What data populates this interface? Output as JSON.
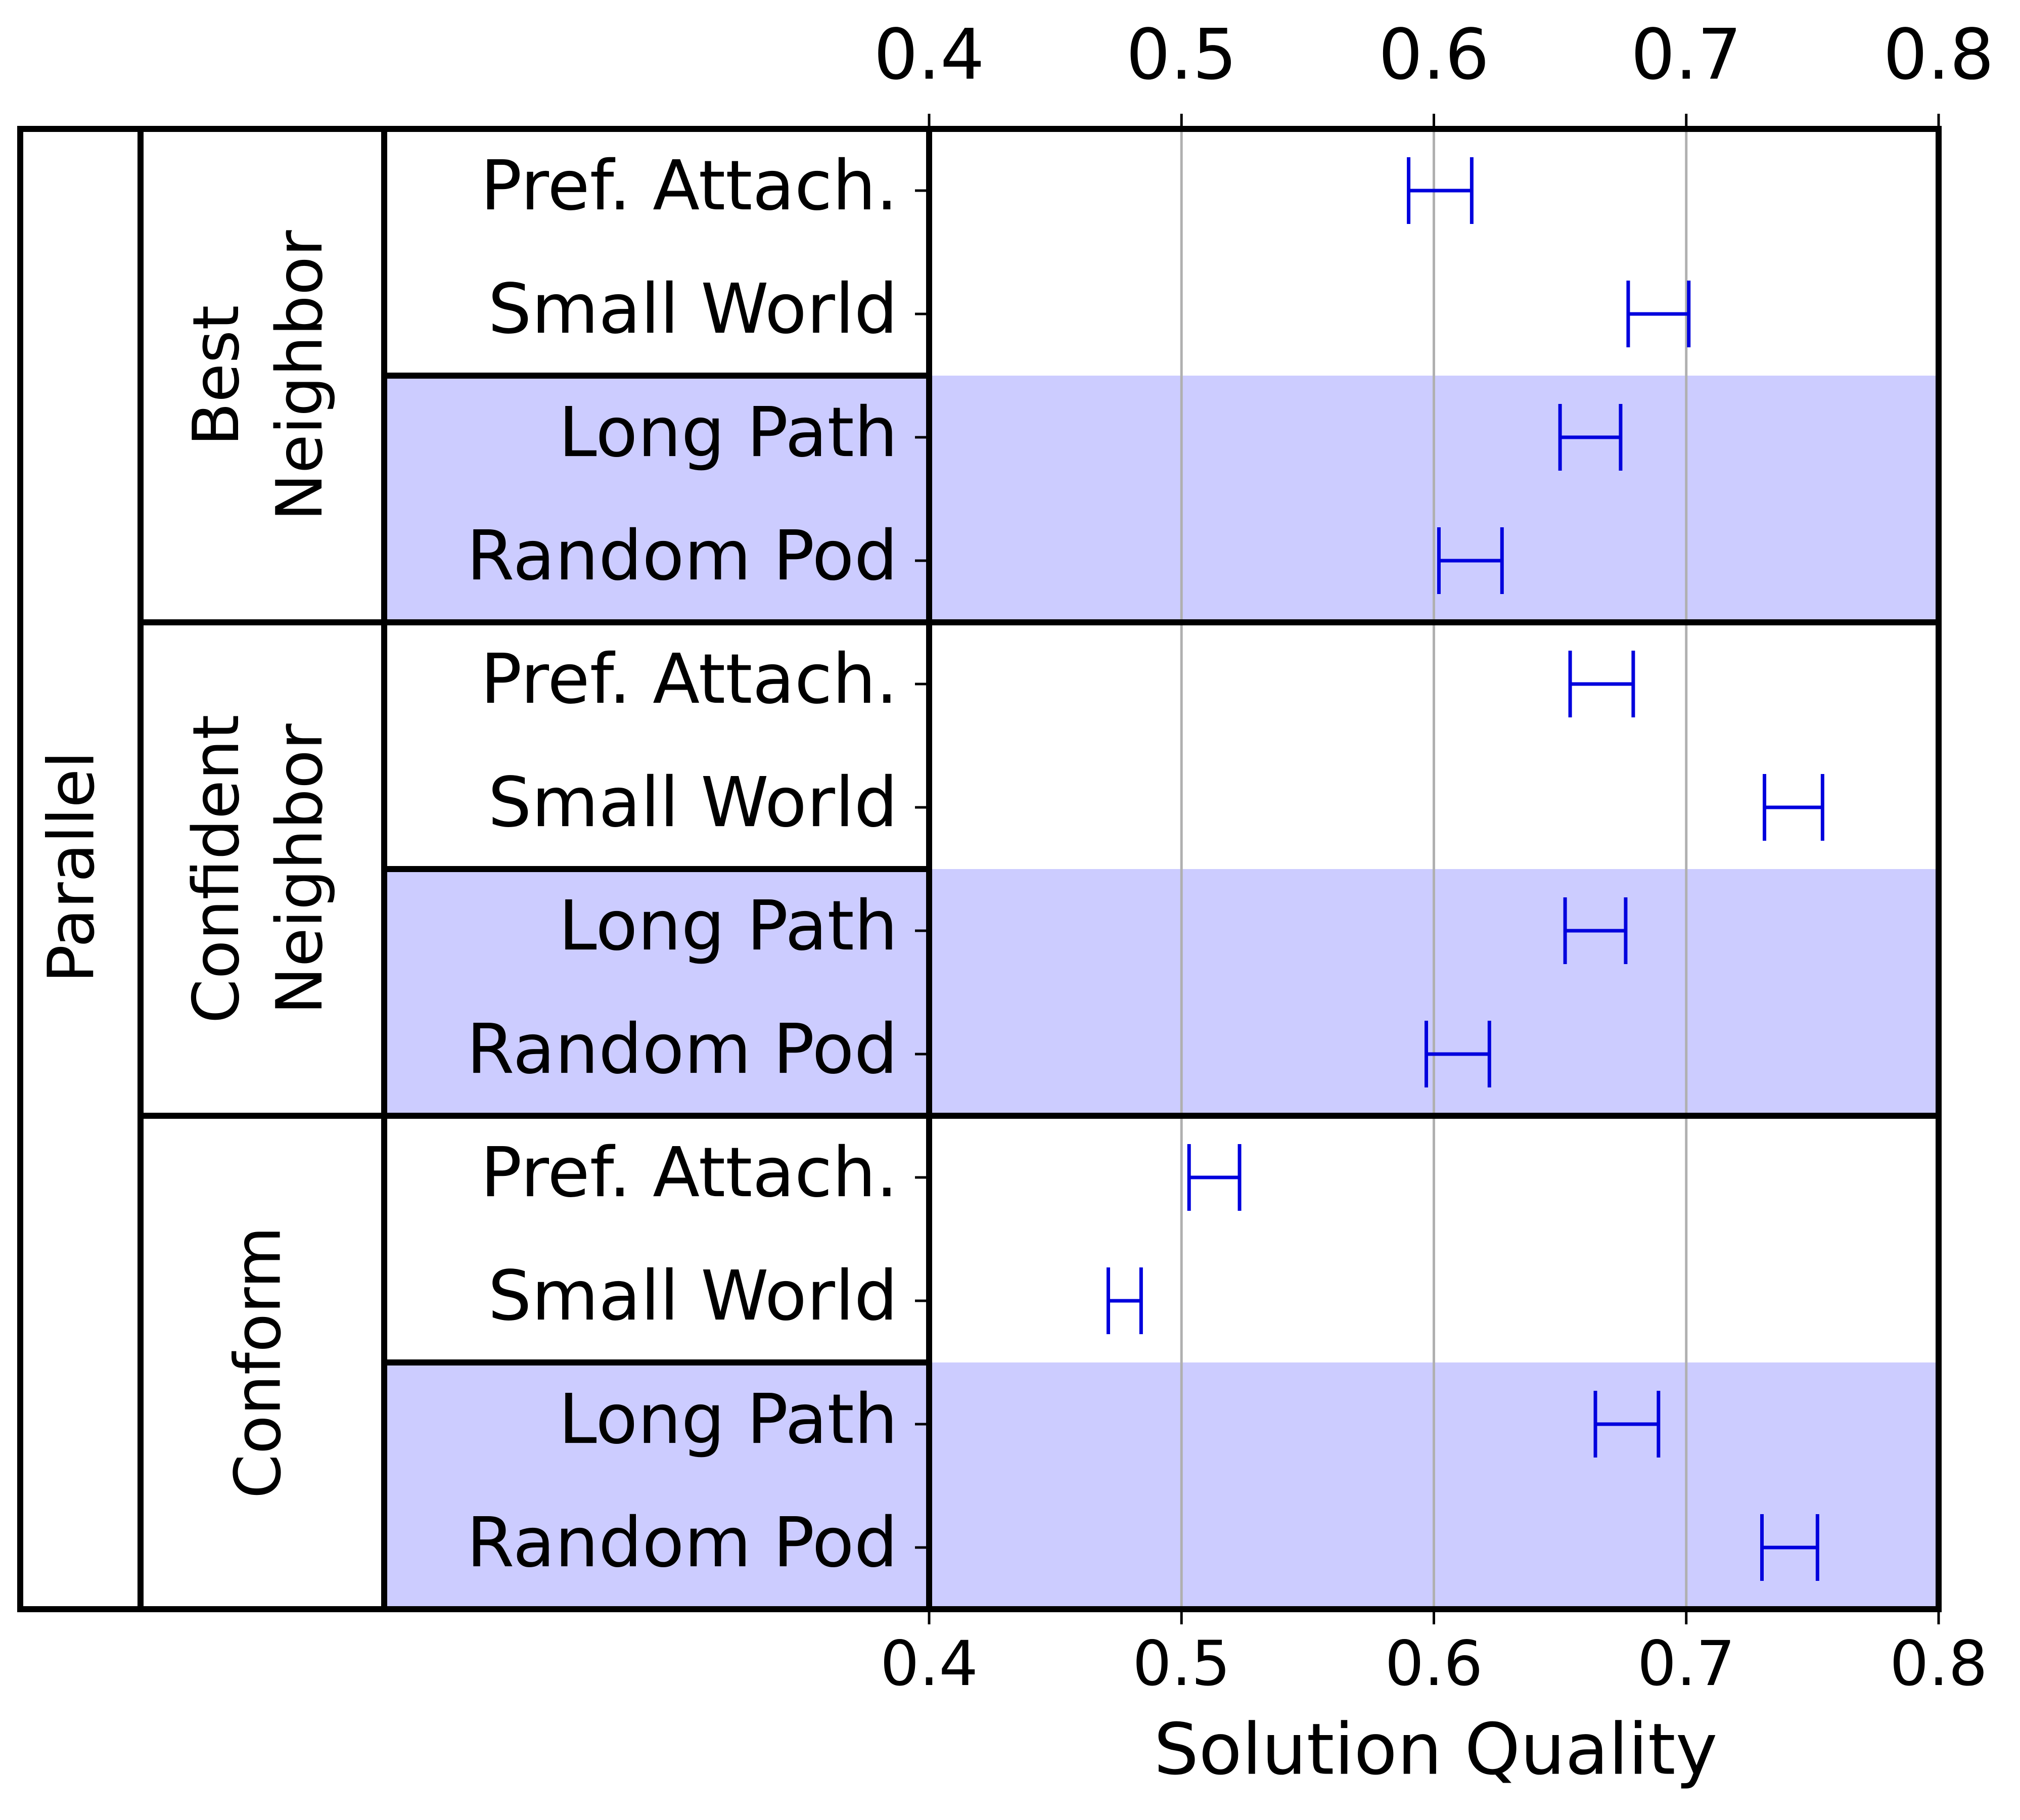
{
  "chart_data": {
    "type": "errorbar",
    "xlabel": "Solution Quality",
    "xlim": [
      0.4,
      0.8
    ],
    "xticks": [
      "0.4",
      "0.5",
      "0.6",
      "0.7",
      "0.8"
    ],
    "grid": "vertical",
    "outer_group": "Parallel",
    "colors": {
      "errorbar": "#0000dd",
      "band": "#ccccff",
      "grid": "#b0b0b0"
    },
    "groups": [
      {
        "label_lines": [
          "Best",
          "Neighbor"
        ],
        "rows": [
          {
            "label": "Pref. Attach.",
            "low": 0.59,
            "high": 0.615,
            "shaded": false
          },
          {
            "label": "Small World",
            "low": 0.677,
            "high": 0.701,
            "shaded": false
          },
          {
            "label": "Long Path",
            "low": 0.65,
            "high": 0.674,
            "shaded": true
          },
          {
            "label": "Random Pod",
            "low": 0.602,
            "high": 0.627,
            "shaded": true
          }
        ]
      },
      {
        "label_lines": [
          "Confident",
          "Neighbor"
        ],
        "rows": [
          {
            "label": "Pref. Attach.",
            "low": 0.654,
            "high": 0.679,
            "shaded": false
          },
          {
            "label": "Small World",
            "low": 0.731,
            "high": 0.754,
            "shaded": false
          },
          {
            "label": "Long Path",
            "low": 0.652,
            "high": 0.676,
            "shaded": true
          },
          {
            "label": "Random Pod",
            "low": 0.597,
            "high": 0.622,
            "shaded": true
          }
        ]
      },
      {
        "label_lines": [
          "Conform"
        ],
        "rows": [
          {
            "label": "Pref. Attach.",
            "low": 0.503,
            "high": 0.523,
            "shaded": false
          },
          {
            "label": "Small World",
            "low": 0.471,
            "high": 0.484,
            "shaded": false
          },
          {
            "label": "Long Path",
            "low": 0.664,
            "high": 0.689,
            "shaded": true
          },
          {
            "label": "Random Pod",
            "low": 0.73,
            "high": 0.752,
            "shaded": true
          }
        ]
      }
    ]
  }
}
